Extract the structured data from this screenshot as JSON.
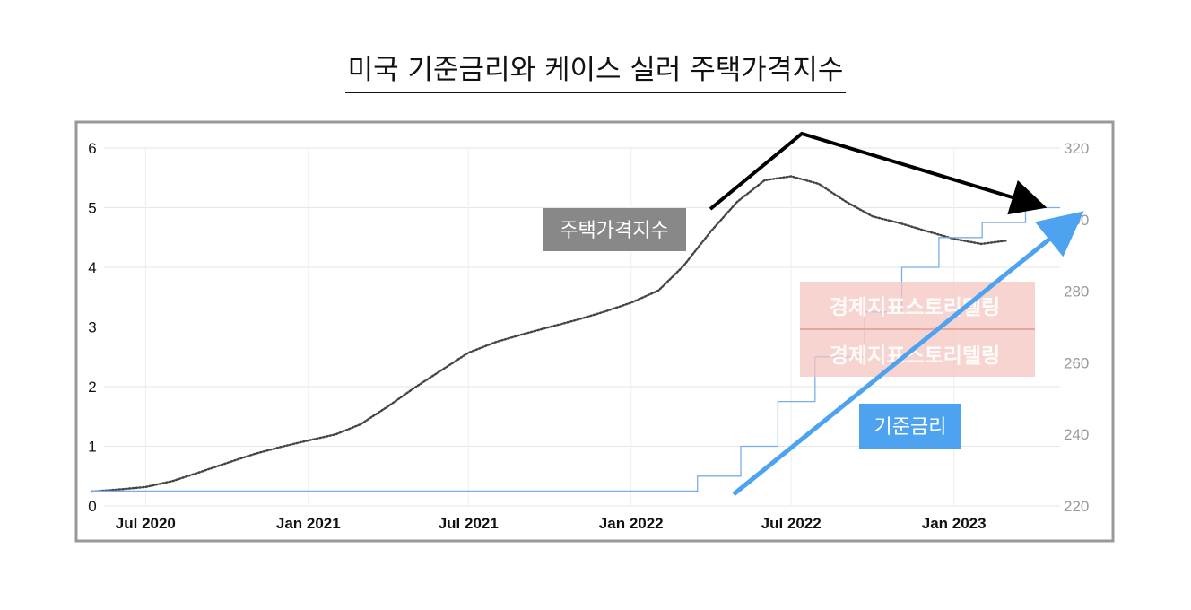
{
  "title": "미국 기준금리와 케이스 실러 주택가격지수",
  "chart_data": {
    "type": "line",
    "x_ticks": [
      "Jul 2020",
      "Jan 2021",
      "Jul 2021",
      "Jan 2022",
      "Jul 2022",
      "Jan 2023"
    ],
    "y_left": {
      "ticks": [
        "0",
        "1",
        "2",
        "3",
        "4",
        "5",
        "6"
      ],
      "ylim": [
        0,
        6
      ]
    },
    "y_right": {
      "ticks": [
        "220",
        "240",
        "260",
        "280",
        "300",
        "320"
      ],
      "ylim": [
        220,
        320
      ]
    },
    "series": [
      {
        "name": "주택가격지수",
        "axis": "right",
        "style": "dotted",
        "color": "#444444",
        "x": [
          "2020-05",
          "2020-06",
          "2020-07",
          "2020-08",
          "2020-09",
          "2020-10",
          "2020-11",
          "2020-12",
          "2021-01",
          "2021-02",
          "2021-03",
          "2021-04",
          "2021-05",
          "2021-06",
          "2021-07",
          "2021-08",
          "2021-09",
          "2021-10",
          "2021-11",
          "2021-12",
          "2022-01",
          "2022-02",
          "2022-03",
          "2022-04",
          "2022-05",
          "2022-06",
          "2022-07",
          "2022-08",
          "2022-09",
          "2022-10",
          "2022-11",
          "2022-12",
          "2023-01",
          "2023-02",
          "2023-03"
        ],
        "values": [
          224,
          224.6,
          225.3,
          227,
          229.5,
          232,
          234.5,
          236.5,
          238.3,
          240,
          242.8,
          247.8,
          253,
          258,
          262.8,
          265.8,
          268,
          270,
          272,
          274.2,
          276.8,
          280.2,
          287,
          296.7,
          305,
          311,
          312.1,
          310,
          305,
          300.9,
          299,
          296.8,
          294.6,
          293.2,
          294.1
        ]
      },
      {
        "name": "기준금리",
        "axis": "left",
        "style": "step",
        "color": "#7aaee8",
        "x": [
          "2020-05",
          "2022-03-17",
          "2022-05-05",
          "2022-06-16",
          "2022-07-28",
          "2022-09-22",
          "2022-11-03",
          "2022-12-15",
          "2023-02-02",
          "2023-03-23"
        ],
        "values": [
          0.25,
          0.5,
          1.0,
          1.75,
          2.5,
          3.25,
          4.0,
          4.5,
          4.75,
          5.0
        ]
      }
    ],
    "annotations": [
      {
        "text": "주택가격지수",
        "type": "label-box",
        "color": "#888888"
      },
      {
        "text": "기준금리",
        "type": "label-box",
        "color": "#4da3f0"
      },
      {
        "type": "arrow",
        "target": "기준금리",
        "color": "#4da3f0",
        "direction": "up"
      },
      {
        "type": "arrow",
        "target": "주택가격지수",
        "color": "#000000",
        "direction": "peak-then-down"
      }
    ],
    "watermark": "경제지표스토리텔링",
    "grid": true
  }
}
